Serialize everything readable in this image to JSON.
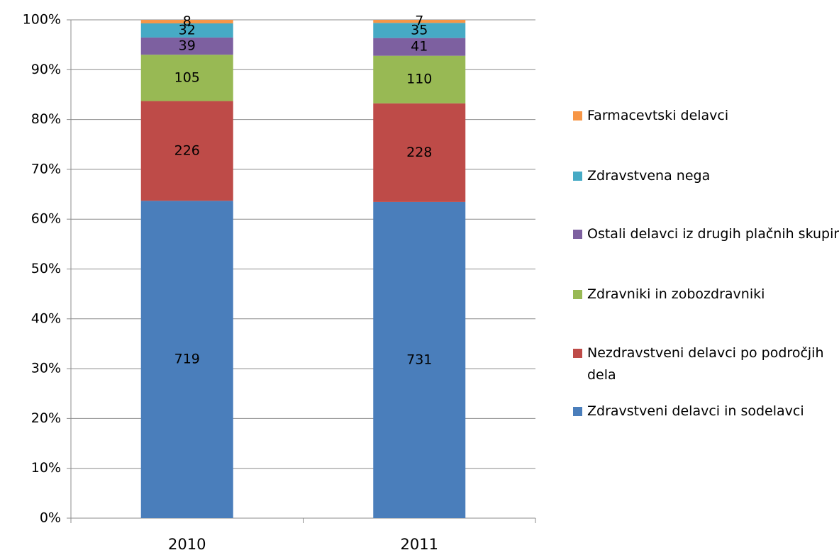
{
  "chart_data": {
    "type": "bar",
    "stacking": "percent",
    "categories": [
      "2010",
      "2011"
    ],
    "series": [
      {
        "name": "Zdravstveni delavci in sodelavci",
        "color": "#4a7ebb",
        "values": [
          719,
          731
        ]
      },
      {
        "name": "Nezdravstveni delavci po področjih dela",
        "color": "#be4b48",
        "values": [
          226,
          228
        ]
      },
      {
        "name": "Zdravniki in zobozdravniki",
        "color": "#98b954",
        "values": [
          105,
          110
        ]
      },
      {
        "name": "Ostali delavci iz drugih plačnih skupin",
        "color": "#7d60a0",
        "values": [
          39,
          41
        ]
      },
      {
        "name": "Zdravstvena nega",
        "color": "#46aac5",
        "values": [
          32,
          35
        ]
      },
      {
        "name": "Farmacevtski delavci",
        "color": "#f79646",
        "values": [
          8,
          7
        ]
      }
    ],
    "ylim": [
      0,
      100
    ],
    "yticks": [
      {
        "value": 0,
        "label": "0%"
      },
      {
        "value": 10,
        "label": "10%"
      },
      {
        "value": 20,
        "label": "20%"
      },
      {
        "value": 30,
        "label": "30%"
      },
      {
        "value": 40,
        "label": "40%"
      },
      {
        "value": 50,
        "label": "50%"
      },
      {
        "value": 60,
        "label": "60%"
      },
      {
        "value": 70,
        "label": "70%"
      },
      {
        "value": 80,
        "label": "80%"
      },
      {
        "value": 90,
        "label": "90%"
      },
      {
        "value": 100,
        "label": "100%"
      }
    ],
    "grid": true,
    "legend": "right"
  }
}
